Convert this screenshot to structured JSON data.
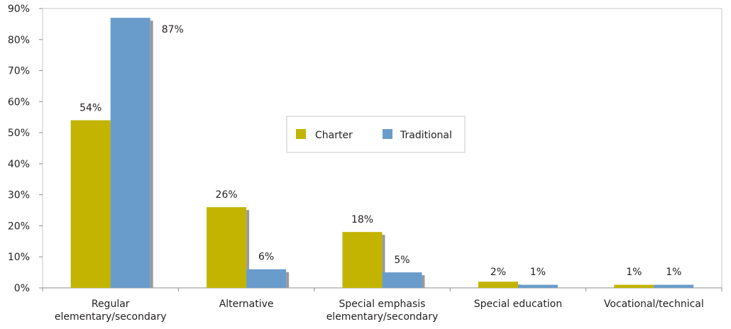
{
  "chart_data": {
    "type": "bar",
    "categories": [
      [
        "Regular",
        "elementary/secondary"
      ],
      [
        "Alternative"
      ],
      [
        "Special emphasis",
        "elementary/secondary"
      ],
      [
        "Special education"
      ],
      [
        "Vocational/technical"
      ]
    ],
    "series": [
      {
        "name": "Charter",
        "color": "#c2b400",
        "values": [
          54,
          26,
          18,
          2,
          1
        ],
        "labels": [
          "54%",
          "26%",
          "18%",
          "2%",
          "1%"
        ]
      },
      {
        "name": "Traditional",
        "color": "#6a9ccb",
        "values": [
          87,
          6,
          5,
          1,
          1
        ],
        "labels": [
          "87%",
          "6%",
          "5%",
          "1%",
          "1%"
        ]
      }
    ],
    "y_ticks": [
      "0%",
      "10%",
      "20%",
      "30%",
      "40%",
      "50%",
      "60%",
      "70%",
      "80%",
      "90%"
    ],
    "ylim": [
      0,
      90
    ],
    "grid": false,
    "legend_position": "center",
    "frame_color": "#c8c8c8",
    "shadow_color": "#9a9a9a"
  }
}
